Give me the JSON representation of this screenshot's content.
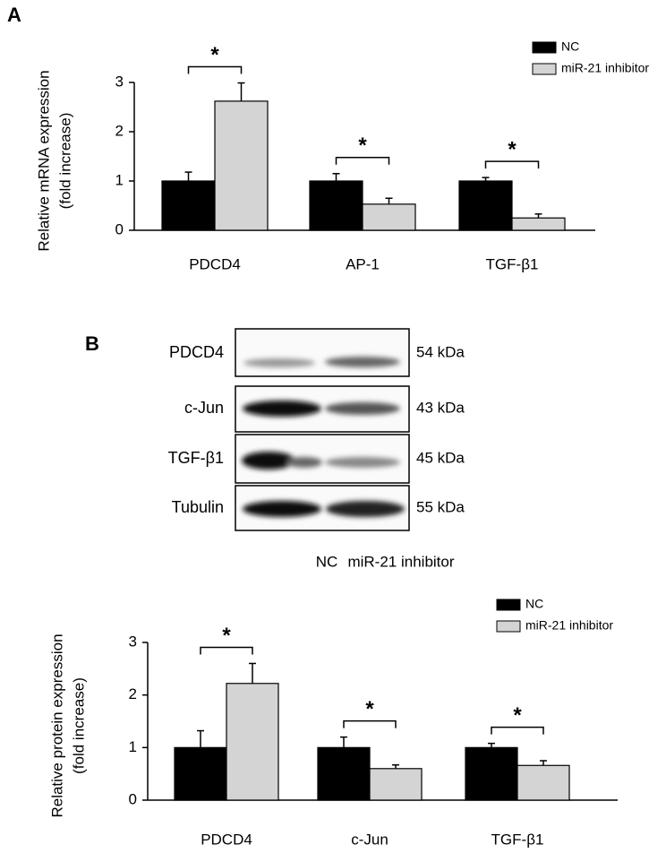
{
  "chart_data": [
    {
      "type": "bar",
      "panel": "A",
      "ylabel": [
        "Relative mRNA expression",
        "(fold increase)"
      ],
      "categories": [
        "PDCD4",
        "AP-1",
        "TGF-β1"
      ],
      "series": [
        {
          "name": "NC",
          "color": "#000000",
          "values": [
            1,
            1,
            1
          ],
          "errors": [
            0.18,
            0.15,
            0.07
          ]
        },
        {
          "name": "miR-21 inhibitor",
          "color": "#d4d4d4",
          "values": [
            2.62,
            0.53,
            0.25
          ],
          "errors": [
            0.37,
            0.12,
            0.08
          ]
        }
      ],
      "significance": [
        "*",
        "*",
        "*"
      ],
      "ylim": [
        0,
        3
      ],
      "yticks": [
        0,
        1,
        2,
        3
      ]
    },
    {
      "type": "bar",
      "ylabel": [
        "Relative protein expression",
        "(fold increase)"
      ],
      "categories": [
        "PDCD4",
        "c-Jun",
        "TGF-β1"
      ],
      "series": [
        {
          "name": "NC",
          "color": "#000000",
          "values": [
            1,
            1,
            1
          ],
          "errors": [
            0.32,
            0.2,
            0.08
          ]
        },
        {
          "name": "miR-21 inhibitor",
          "color": "#d4d4d4",
          "values": [
            2.22,
            0.6,
            0.66
          ],
          "errors": [
            0.38,
            0.07,
            0.09
          ]
        }
      ],
      "significance": [
        "*",
        "*",
        "*"
      ],
      "ylim": [
        0,
        3
      ],
      "yticks": [
        0,
        1,
        2,
        3
      ]
    }
  ],
  "blot": {
    "panel": "B",
    "rows": [
      {
        "label": "PDCD4",
        "size": "54 kDa"
      },
      {
        "label": "c-Jun",
        "size": "43 kDa"
      },
      {
        "label": "TGF-β1",
        "size": "45 kDa"
      },
      {
        "label": "Tubulin",
        "size": "55 kDa"
      }
    ],
    "lanes": [
      "NC",
      "miR-21 inhibitor"
    ]
  }
}
